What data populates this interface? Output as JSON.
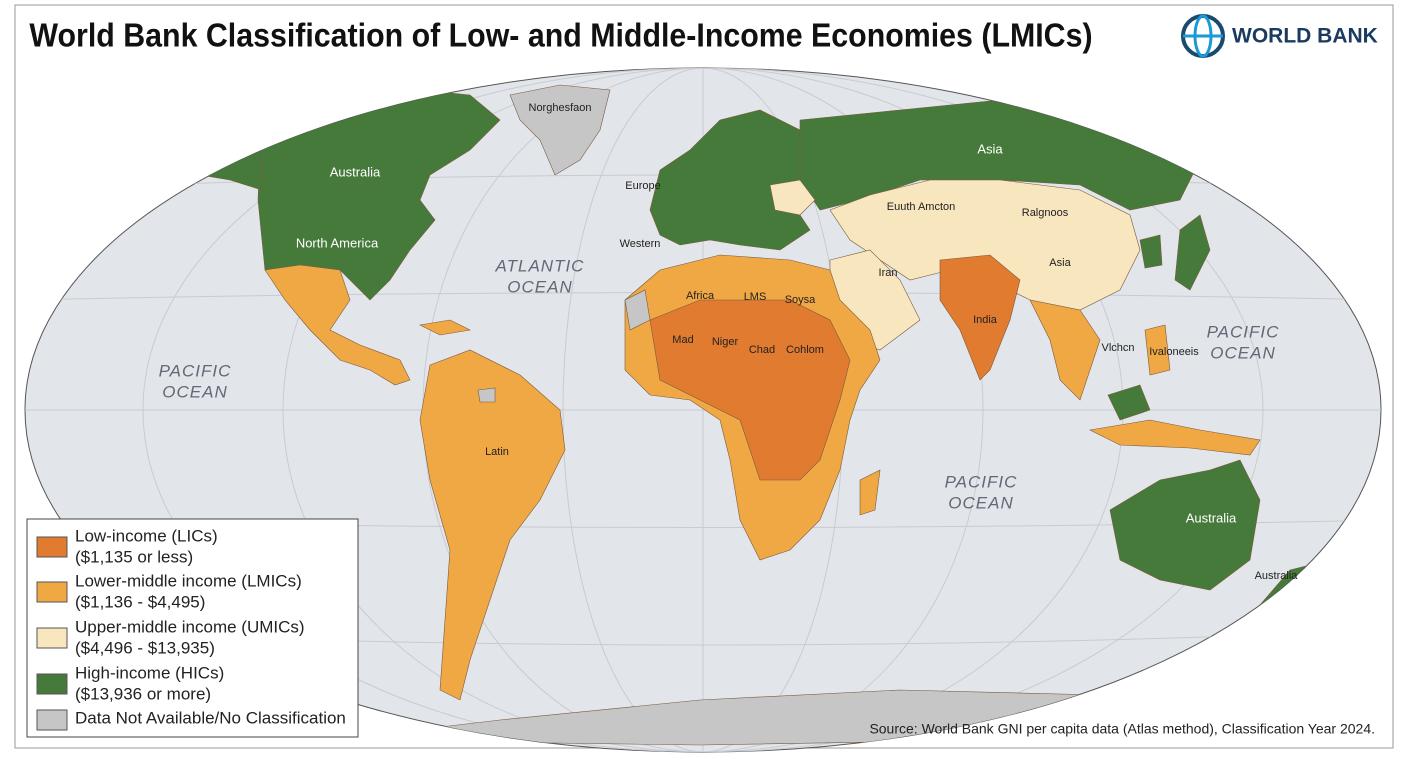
{
  "header": {
    "title": "World Bank Classification of Low- and Middle-Income Economies (LMICs)",
    "logo": "WORLD BANK"
  },
  "legend": [
    {
      "label": "Low-income (LICs)",
      "range": "($1,135 or less)",
      "color": "#e07b30"
    },
    {
      "label": "Lower-middle income (LMICs)",
      "range": "($1,136 - $4,495)",
      "color": "#f0a845"
    },
    {
      "label": "Upper-middle income (UMICs)",
      "range": "($4,496 - $13,935)",
      "color": "#f7e6be"
    },
    {
      "label": "High-income (HICs)",
      "range": "($13,936 or more)",
      "color": "#457a3a"
    },
    {
      "label": "Data Not Available/No Classification",
      "color": "#c6c6c6"
    }
  ],
  "map": {
    "labels": [
      "Norghesfaon",
      "Australia",
      "North America",
      "Europe",
      "Western",
      "ATLANTIC",
      "OCEAN",
      "Africa",
      "LMS",
      "Soysa",
      "Mad",
      "Niger",
      "Chad",
      "Cohlom",
      "Asia",
      "Euuth Amcton",
      "Ralgnoos",
      "Iran",
      "Asia",
      "India",
      "PACIFIC",
      "OCEAN",
      "Latin",
      "Vlchcn",
      "Ivaloneeis",
      "PACIFIC",
      "OCEAN",
      "PACIFIC",
      "OCEAN",
      "Australia",
      "Australia"
    ]
  },
  "source": "Source: World Bank GNI per capita data (Atlas method), Classification Year 2024."
}
